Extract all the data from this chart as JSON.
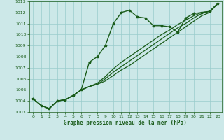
{
  "title": "Graphe pression niveau de la mer (hPa)",
  "bg_color": "#cce8e8",
  "grid_color": "#99cccc",
  "line_color": "#1a5c1a",
  "xlim": [
    -0.5,
    23.5
  ],
  "ylim": [
    1003.0,
    1013.0
  ],
  "xticks": [
    0,
    1,
    2,
    3,
    4,
    5,
    6,
    7,
    8,
    9,
    10,
    11,
    12,
    13,
    14,
    15,
    16,
    17,
    18,
    19,
    20,
    21,
    22,
    23
  ],
  "yticks": [
    1003,
    1004,
    1005,
    1006,
    1007,
    1008,
    1009,
    1010,
    1011,
    1012,
    1013
  ],
  "series": [
    {
      "x": [
        0,
        1,
        2,
        3,
        4,
        5,
        6,
        7,
        8,
        9,
        10,
        11,
        12,
        13,
        14,
        15,
        16,
        17,
        18,
        19,
        20,
        21,
        22,
        23
      ],
      "y": [
        1004.2,
        1003.6,
        1003.3,
        1004.0,
        1004.1,
        1004.5,
        1005.0,
        1005.3,
        1005.5,
        1005.8,
        1006.3,
        1006.8,
        1007.2,
        1007.7,
        1008.2,
        1008.7,
        1009.2,
        1009.7,
        1010.2,
        1010.7,
        1011.2,
        1011.7,
        1012.0,
        1012.8
      ],
      "marker": null,
      "lw": 0.9
    },
    {
      "x": [
        0,
        1,
        2,
        3,
        4,
        5,
        6,
        7,
        8,
        9,
        10,
        11,
        12,
        13,
        14,
        15,
        16,
        17,
        18,
        19,
        20,
        21,
        22,
        23
      ],
      "y": [
        1004.2,
        1003.6,
        1003.3,
        1004.0,
        1004.1,
        1004.5,
        1005.0,
        1005.3,
        1005.5,
        1006.0,
        1006.6,
        1007.1,
        1007.6,
        1008.1,
        1008.6,
        1009.1,
        1009.6,
        1010.1,
        1010.6,
        1011.0,
        1011.5,
        1011.9,
        1012.1,
        1012.8
      ],
      "marker": null,
      "lw": 0.9
    },
    {
      "x": [
        0,
        1,
        2,
        3,
        4,
        5,
        6,
        7,
        8,
        9,
        10,
        11,
        12,
        13,
        14,
        15,
        16,
        17,
        18,
        19,
        20,
        21,
        22,
        23
      ],
      "y": [
        1004.2,
        1003.6,
        1003.3,
        1004.0,
        1004.1,
        1004.5,
        1005.0,
        1005.3,
        1005.6,
        1006.2,
        1006.9,
        1007.5,
        1008.0,
        1008.5,
        1009.0,
        1009.5,
        1010.0,
        1010.4,
        1010.9,
        1011.3,
        1011.7,
        1012.0,
        1012.1,
        1012.8
      ],
      "marker": null,
      "lw": 0.9
    },
    {
      "x": [
        0,
        1,
        2,
        3,
        4,
        5,
        6,
        7,
        8,
        9,
        10,
        11,
        12,
        13,
        14,
        15,
        16,
        17,
        18,
        19,
        20,
        21,
        22,
        23
      ],
      "y": [
        1004.2,
        1003.6,
        1003.3,
        1004.0,
        1004.1,
        1004.5,
        1005.0,
        1007.5,
        1008.0,
        1009.0,
        1011.0,
        1012.0,
        1012.2,
        1011.6,
        1011.5,
        1010.8,
        1010.8,
        1010.7,
        1010.2,
        1011.5,
        1011.9,
        1012.0,
        1012.1,
        1012.8
      ],
      "marker": "*",
      "lw": 1.0
    }
  ]
}
